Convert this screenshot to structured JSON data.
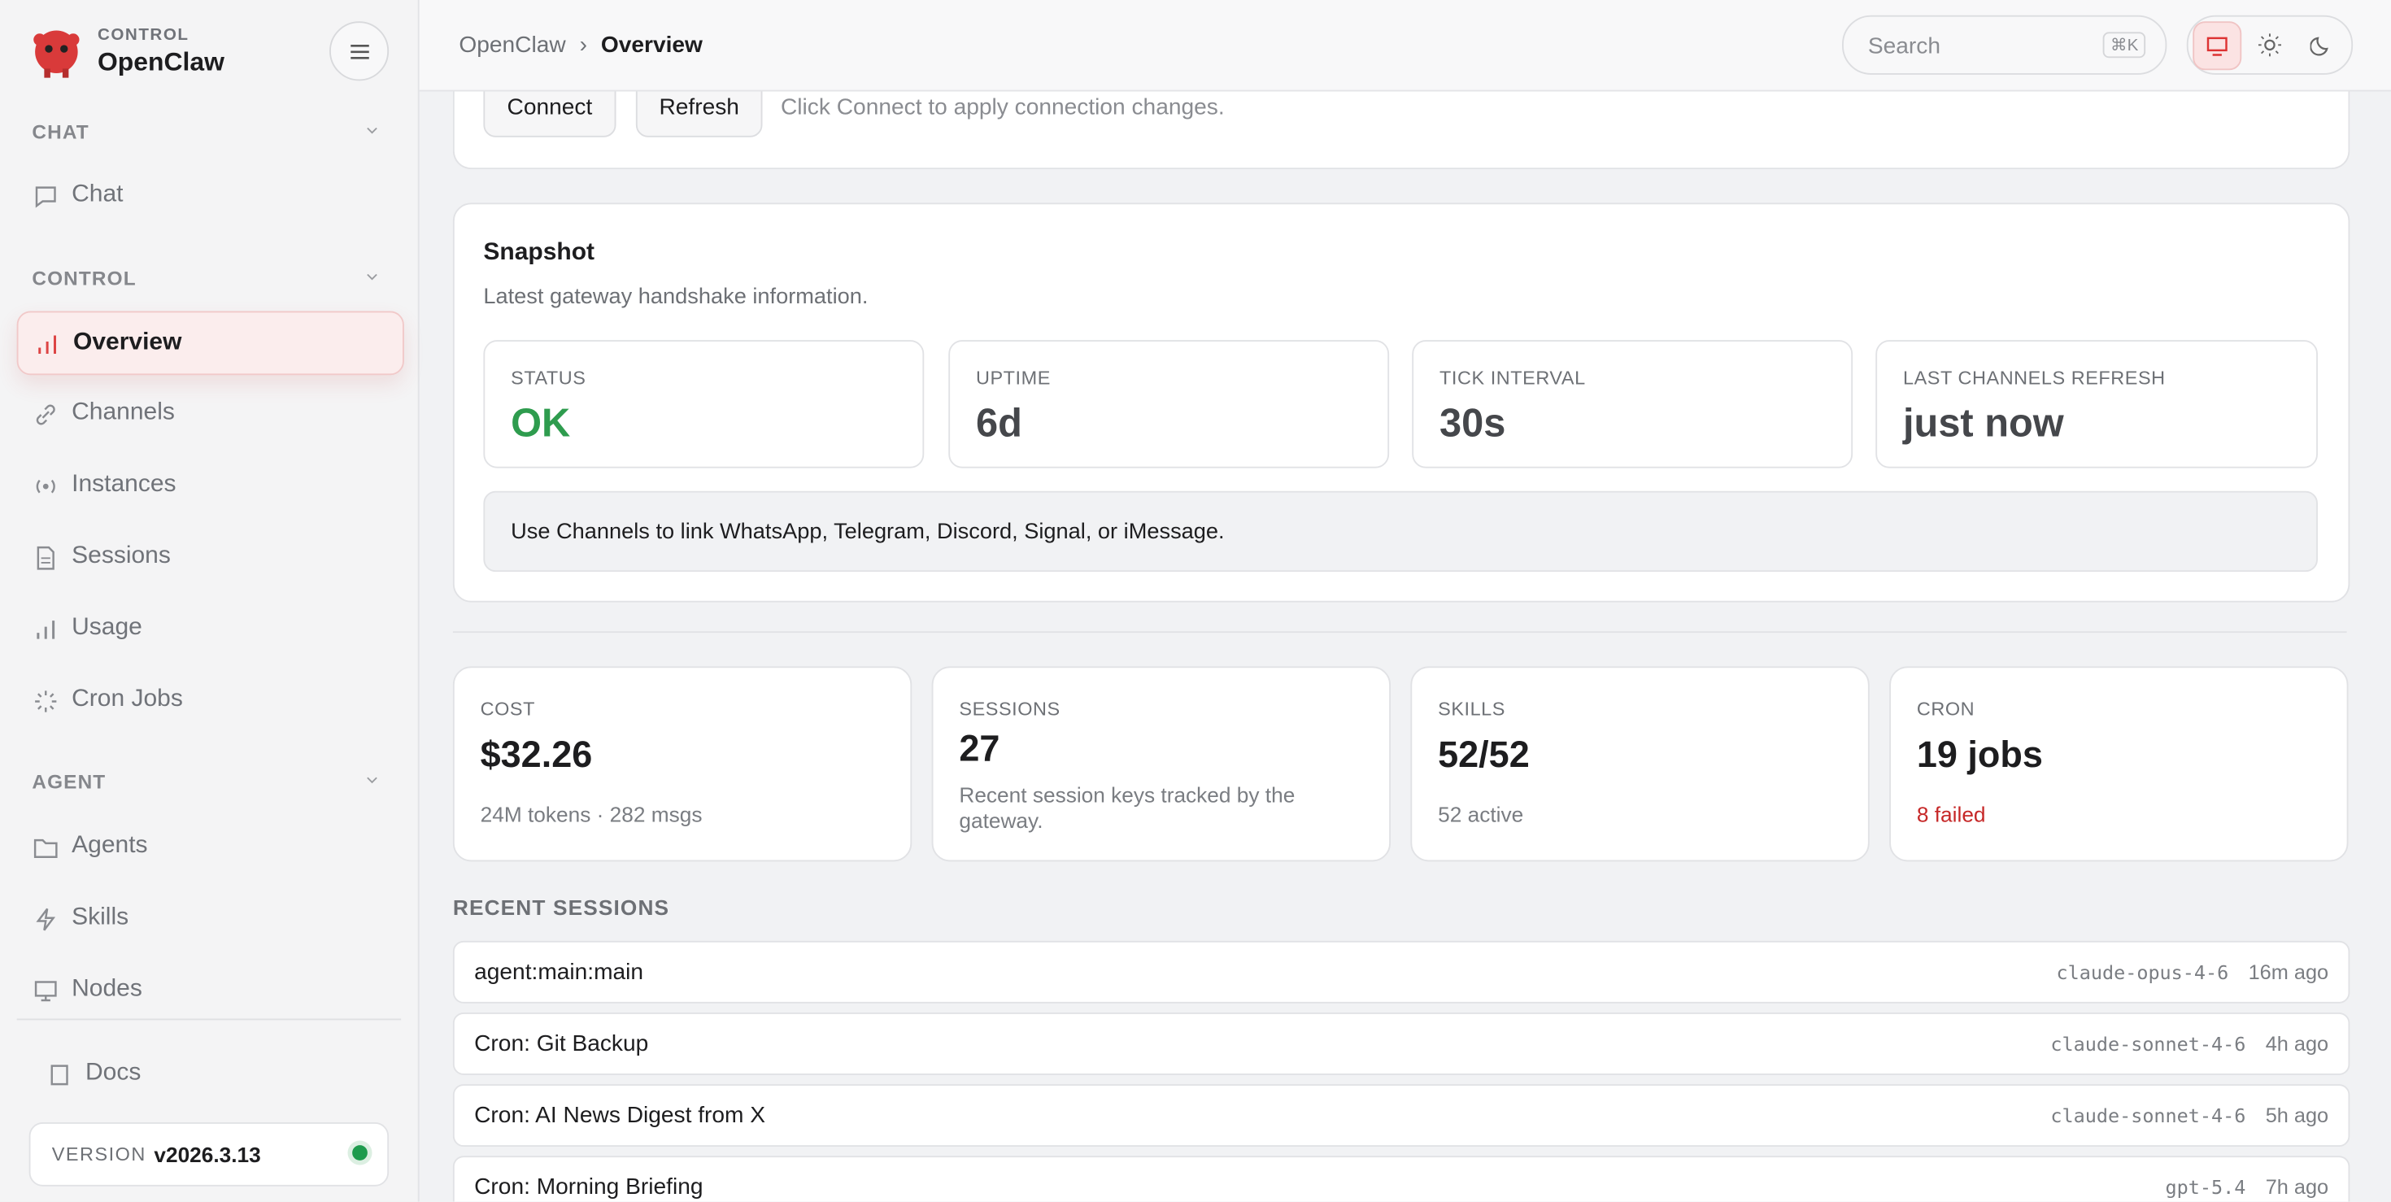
{
  "sidebar": {
    "brand": {
      "kicker": "CONTROL",
      "name": "OpenClaw"
    },
    "groups": [
      {
        "label": "CHAT",
        "items": [
          "Chat"
        ]
      },
      {
        "label": "CONTROL",
        "items": [
          "Overview",
          "Channels",
          "Instances",
          "Sessions",
          "Usage",
          "Cron Jobs"
        ]
      },
      {
        "label": "AGENT",
        "items": [
          "Agents",
          "Skills",
          "Nodes"
        ]
      }
    ],
    "docs": "Docs",
    "version": {
      "label": "VERSION",
      "value": "v2026.3.13"
    }
  },
  "topbar": {
    "breadcrumb": [
      "OpenClaw",
      "Overview"
    ],
    "separator": "›",
    "search": "Search",
    "shortcut": "⌘K"
  },
  "connection": {
    "buttons": [
      "Connect",
      "Refresh"
    ],
    "hint": "Click Connect to apply connection changes."
  },
  "snapshot": {
    "title": "Snapshot",
    "subtitle": "Latest gateway handshake information.",
    "stats": [
      {
        "label": "STATUS",
        "value": "OK"
      },
      {
        "label": "UPTIME",
        "value": "6d"
      },
      {
        "label": "TICK INTERVAL",
        "value": "30s"
      },
      {
        "label": "LAST CHANNELS REFRESH",
        "value": "just now"
      }
    ],
    "note": "Use Channels to link WhatsApp, Telegram, Discord, Signal, or iMessage."
  },
  "metrics": [
    {
      "label": "COST",
      "value": "$32.26",
      "sub": "24M tokens · 282 msgs"
    },
    {
      "label": "SESSIONS",
      "value": "27",
      "sub": "Recent session keys tracked by the gateway."
    },
    {
      "label": "SKILLS",
      "value": "52/52",
      "sub": "52 active"
    },
    {
      "label": "CRON",
      "value": "19 jobs",
      "sub": "8 failed"
    }
  ],
  "recent": {
    "title": "RECENT SESSIONS",
    "rows": [
      {
        "name": "agent:main:main",
        "model": "claude-opus-4-6",
        "age": "16m ago"
      },
      {
        "name": "Cron: Git Backup",
        "model": "claude-sonnet-4-6",
        "age": "4h ago"
      },
      {
        "name": "Cron: AI News Digest from X",
        "model": "claude-sonnet-4-6",
        "age": "5h ago"
      },
      {
        "name": "Cron: Morning Briefing",
        "model": "gpt-5.4",
        "age": "7h ago"
      }
    ]
  }
}
